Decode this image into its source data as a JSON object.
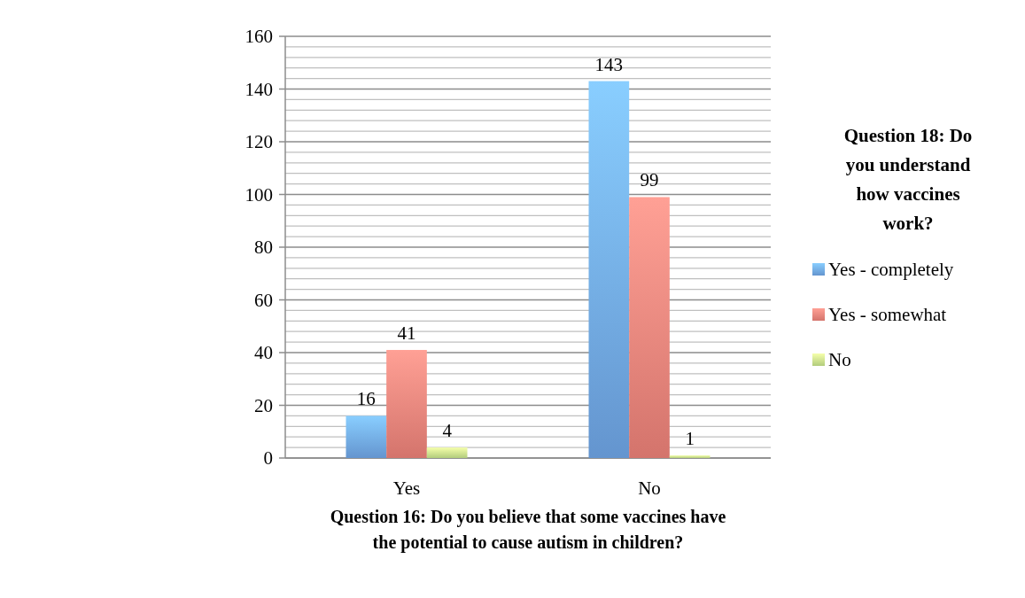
{
  "chart_data": {
    "type": "bar",
    "xlabel": "Question 16: Do you believe that some vaccines have the potential to cause autism in children?",
    "legend_title": "Question 18: Do you understand how vaccines work?",
    "categories": [
      "Yes",
      "No"
    ],
    "series": [
      {
        "name": "Yes - completely",
        "color": "#6fa6e6",
        "values": [
          16,
          143
        ]
      },
      {
        "name": "Yes - somewhat",
        "color": "#ec8178",
        "values": [
          41,
          99
        ]
      },
      {
        "name": "No",
        "color": "#c6e38a",
        "values": [
          4,
          1
        ]
      }
    ],
    "ylim": [
      0,
      160
    ],
    "yticks": [
      0,
      {
        "value": 4,
        "label": null
      },
      {
        "value": 8,
        "label": null
      },
      {
        "value": 12,
        "label": null
      },
      {
        "value": 16,
        "label": null
      },
      20,
      {
        "value": 24,
        "label": null
      },
      {
        "value": 28,
        "label": null
      },
      {
        "value": 32,
        "label": null
      },
      {
        "value": 36,
        "label": null
      },
      40,
      {
        "value": 44,
        "label": null
      },
      {
        "value": 48,
        "label": null
      },
      {
        "value": 52,
        "label": null
      },
      {
        "value": 56,
        "label": null
      },
      60,
      {
        "value": 64,
        "label": null
      },
      {
        "value": 68,
        "label": null
      },
      {
        "value": 72,
        "label": null
      },
      {
        "value": 76,
        "label": null
      },
      80,
      {
        "value": 84,
        "label": null
      },
      {
        "value": 88,
        "label": null
      },
      {
        "value": 92,
        "label": null
      },
      {
        "value": 96,
        "label": null
      },
      100,
      {
        "value": 104,
        "label": null
      },
      {
        "value": 108,
        "label": null
      },
      {
        "value": 112,
        "label": null
      },
      {
        "value": 116,
        "label": null
      },
      120,
      {
        "value": 124,
        "label": null
      },
      {
        "value": 128,
        "label": null
      },
      {
        "value": 132,
        "label": null
      },
      {
        "value": 136,
        "label": null
      },
      140,
      {
        "value": 144,
        "label": null
      },
      {
        "value": 148,
        "label": null
      },
      {
        "value": 152,
        "label": null
      },
      {
        "value": 156,
        "label": null
      },
      160
    ],
    "grid": "y",
    "legend": "right",
    "data_labels": true
  }
}
